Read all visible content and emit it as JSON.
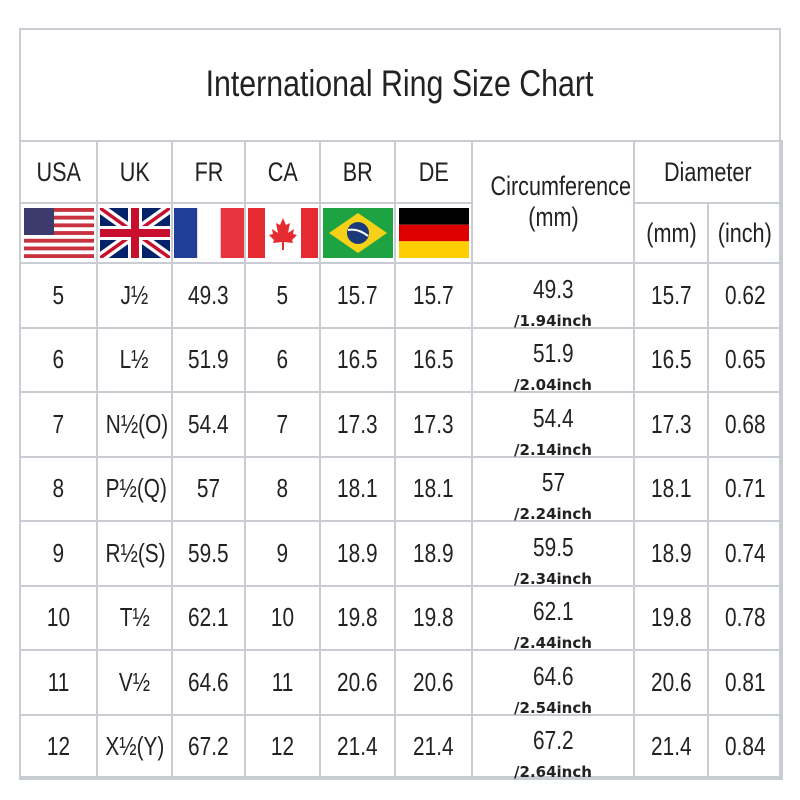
{
  "title": "International Ring Size Chart",
  "chart_data": {
    "type": "table",
    "title": "International Ring Size Chart",
    "columns": [
      "USA",
      "UK",
      "FR",
      "CA",
      "BR",
      "DE",
      "Circumference (mm)",
      "Diameter (mm)",
      "Diameter (inch)"
    ],
    "header": {
      "usa": "USA",
      "uk": "UK",
      "fr": "FR",
      "ca": "CA",
      "br": "BR",
      "de": "DE",
      "circ_top": "Circumference",
      "circ_bottom": "(mm)",
      "diameter": "Diameter",
      "dia_mm": "(mm)",
      "dia_inch": "(inch)"
    },
    "flags": [
      "us-flag-icon",
      "uk-flag-icon",
      "france-flag-icon",
      "canada-flag-icon",
      "brazil-flag-icon",
      "germany-flag-icon"
    ],
    "rows": [
      {
        "usa": "5",
        "uk": "J½",
        "fr": "49.3",
        "ca": "5",
        "br": "15.7",
        "de": "15.7",
        "circ": "49.3",
        "circ_inch": "/1.94inch",
        "dia_mm": "15.7",
        "dia_inch": "0.62"
      },
      {
        "usa": "6",
        "uk": "L½",
        "fr": "51.9",
        "ca": "6",
        "br": "16.5",
        "de": "16.5",
        "circ": "51.9",
        "circ_inch": "/2.04inch",
        "dia_mm": "16.5",
        "dia_inch": "0.65"
      },
      {
        "usa": "7",
        "uk": "N½(O)",
        "fr": "54.4",
        "ca": "7",
        "br": "17.3",
        "de": "17.3",
        "circ": "54.4",
        "circ_inch": "/2.14inch",
        "dia_mm": "17.3",
        "dia_inch": "0.68"
      },
      {
        "usa": "8",
        "uk": "P½(Q)",
        "fr": "57",
        "ca": "8",
        "br": "18.1",
        "de": "18.1",
        "circ": "57",
        "circ_inch": "/2.24inch",
        "dia_mm": "18.1",
        "dia_inch": "0.71"
      },
      {
        "usa": "9",
        "uk": "R½(S)",
        "fr": "59.5",
        "ca": "9",
        "br": "18.9",
        "de": "18.9",
        "circ": "59.5",
        "circ_inch": "/2.34inch",
        "dia_mm": "18.9",
        "dia_inch": "0.74"
      },
      {
        "usa": "10",
        "uk": "T½",
        "fr": "62.1",
        "ca": "10",
        "br": "19.8",
        "de": "19.8",
        "circ": "62.1",
        "circ_inch": "/2.44inch",
        "dia_mm": "19.8",
        "dia_inch": "0.78"
      },
      {
        "usa": "11",
        "uk": "V½",
        "fr": "64.6",
        "ca": "11",
        "br": "20.6",
        "de": "20.6",
        "circ": "64.6",
        "circ_inch": "/2.54inch",
        "dia_mm": "20.6",
        "dia_inch": "0.81"
      },
      {
        "usa": "12",
        "uk": "X½(Y)",
        "fr": "67.2",
        "ca": "12",
        "br": "21.4",
        "de": "21.4",
        "circ": "67.2",
        "circ_inch": "/2.64inch",
        "dia_mm": "21.4",
        "dia_inch": "0.84"
      }
    ]
  }
}
